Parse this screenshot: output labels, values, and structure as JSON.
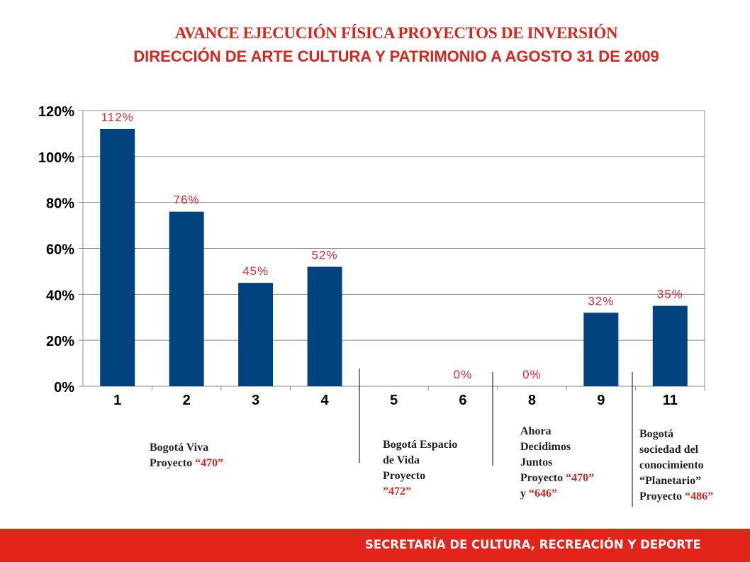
{
  "header": {
    "title": "AVANCE EJECUCIÓN FÍSICA PROYECTOS DE INVERSIÓN",
    "subtitle": "DIRECCIÓN DE ARTE CULTURA Y PATRIMONIO A AGOSTO 31 DE 2009"
  },
  "chart_data": {
    "type": "bar",
    "categories": [
      "1",
      "2",
      "3",
      "4",
      "5",
      "6",
      "8",
      "9",
      "11"
    ],
    "values": [
      112,
      76,
      45,
      52,
      null,
      0,
      0,
      32,
      35
    ],
    "data_labels": [
      "112%",
      "76%",
      "45%",
      "52%",
      "",
      "0%",
      "0%",
      "32%",
      "35%"
    ],
    "ytick_labels": [
      "0%",
      "20%",
      "40%",
      "60%",
      "80%",
      "100%",
      "120%"
    ],
    "ylim": [
      0,
      120
    ],
    "grid": true,
    "bar_color": "#00437f",
    "label_color": "#e8262e"
  },
  "groups": [
    {
      "lines": [
        "Bogotá Viva",
        "Proyecto"
      ],
      "project": "“470”"
    },
    {
      "lines": [
        "Bogotá Espacio",
        "de Vida",
        "Proyecto"
      ],
      "project": "”472”"
    },
    {
      "lines": [
        "Ahora",
        "Decidimos",
        "Juntos",
        "Proyecto"
      ],
      "project": "“470”",
      "extra": "y",
      "project2": "“646”"
    },
    {
      "lines": [
        "Bogotá",
        "sociedad del",
        "conocimiento",
        "“Planetario”",
        "Proyecto"
      ],
      "project": "“486”"
    }
  ],
  "footer": {
    "text": "SECRETARÍA DE CULTURA, RECREACIÓN Y DEPORTE"
  }
}
